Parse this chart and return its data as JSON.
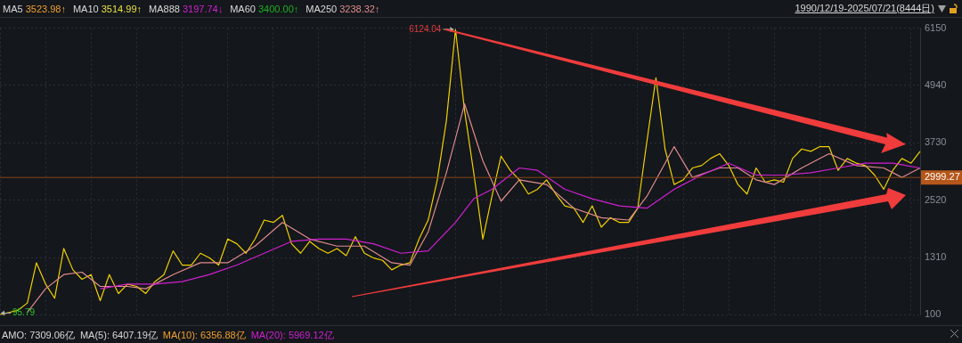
{
  "chart_data": {
    "type": "line",
    "subtitle": "1990/12/19-2025/07/21(8444日)",
    "annotations": [
      "MA5 3523.98↑",
      "MA10 3514.99↑",
      "MA888 3197.74↓",
      "MA60 3400.00↑",
      "MA250 3238.32↑",
      "AMO: 7309.06亿",
      "MA(5): 6407.19亿",
      "MA(10): 6356.88亿",
      "MA(20): 5969.12亿",
      "6124.04",
      "95.79"
    ],
    "categories": [
      null,
      null,
      null,
      null,
      null,
      null,
      null,
      null,
      null,
      null,
      null,
      null,
      null,
      null,
      null,
      null,
      null,
      null,
      null,
      null,
      null,
      null,
      null,
      null,
      null,
      null,
      null,
      null,
      null,
      null,
      null,
      null,
      null,
      null,
      null,
      null,
      null,
      null,
      null,
      null,
      null,
      null,
      null,
      null,
      null,
      null,
      null,
      null,
      null,
      null,
      null,
      null,
      null,
      null,
      null,
      null,
      null,
      null,
      null,
      null,
      null,
      null,
      null,
      null,
      null,
      null,
      null,
      null,
      null,
      null,
      null,
      null,
      null,
      null,
      null,
      null,
      null,
      null,
      null,
      null,
      null,
      null,
      null,
      null,
      null,
      null,
      null,
      null,
      null,
      null,
      null,
      null,
      null,
      null,
      null,
      null,
      null,
      null,
      null,
      null,
      null,
      null
    ],
    "series": [
      {
        "color": "#f0d000",
        "values": [
          100,
          150,
          200,
          350,
          1200,
          750,
          450,
          1500,
          1050,
          850,
          950,
          400,
          950,
          550,
          750,
          700,
          550,
          800,
          950,
          1450,
          1150,
          1150,
          1400,
          1300,
          1150,
          1700,
          1600,
          1400,
          1700,
          2100,
          2050,
          2200,
          1600,
          1400,
          1650,
          1500,
          1400,
          1500,
          1350,
          1750,
          1400,
          1300,
          1250,
          1050,
          1150,
          1200,
          1700,
          2100,
          2950,
          4200,
          6124.04,
          4400,
          3100,
          1700,
          2600,
          3450,
          3150,
          2950,
          2650,
          2750,
          2950,
          2650,
          2400,
          2350,
          2050,
          2400,
          1950,
          2150,
          2050,
          2050,
          2350,
          3750,
          5100,
          3600,
          2850,
          2950,
          3200,
          3250,
          3400,
          3500,
          3250,
          2850,
          2650,
          3200,
          2900,
          2950,
          2900,
          3400,
          3600,
          3550,
          3650,
          3650,
          3150,
          3400,
          3300,
          3250,
          3050,
          2750,
          3150,
          3400,
          3300,
          3550
        ]
      },
      {
        "color": "#e08c8c",
        "values": [
          null,
          null,
          null,
          150,
          null,
          650,
          null,
          950,
          null,
          1000,
          null,
          700,
          null,
          null,
          700,
          null,
          650,
          null,
          null,
          950,
          null,
          null,
          1200,
          null,
          null,
          1200,
          null,
          null,
          1550,
          null,
          null,
          2050,
          null,
          null,
          1700,
          null,
          null,
          1550,
          null,
          null,
          1550,
          null,
          null,
          1200,
          null,
          1150,
          null,
          1850,
          null,
          3100,
          null,
          4550,
          null,
          3350,
          null,
          2500,
          null,
          2950,
          null,
          null,
          2850,
          null,
          null,
          2350,
          null,
          null,
          2150,
          null,
          null,
          2100,
          null,
          2600,
          null,
          3300,
          3650,
          null,
          3000,
          null,
          null,
          3200,
          null,
          3200,
          null,
          2950,
          null,
          2850,
          null,
          null,
          3200,
          null,
          null,
          3500,
          null,
          null,
          3250,
          null,
          null,
          3200,
          null,
          3000,
          null,
          3200
        ]
      },
      {
        "color": "#d020d0",
        "values": [
          null,
          null,
          null,
          null,
          null,
          null,
          null,
          null,
          null,
          null,
          null,
          650,
          null,
          null,
          750,
          null,
          null,
          750,
          null,
          null,
          800,
          null,
          null,
          950,
          null,
          null,
          1150,
          null,
          null,
          1400,
          null,
          null,
          1650,
          null,
          null,
          1700,
          null,
          null,
          1700,
          null,
          null,
          1600,
          null,
          null,
          1400,
          null,
          null,
          1450,
          null,
          null,
          2050,
          null,
          2550,
          null,
          2750,
          null,
          null,
          3200,
          null,
          3150,
          null,
          null,
          2750,
          null,
          null,
          2550,
          null,
          null,
          2400,
          null,
          null,
          2350,
          null,
          null,
          2750,
          null,
          null,
          3050,
          null,
          null,
          3300,
          null,
          null,
          3050,
          null,
          null,
          3050,
          null,
          null,
          3100,
          null,
          null,
          3200,
          null,
          null,
          3300,
          null,
          null,
          3300,
          null,
          null,
          3200
        ]
      }
    ],
    "ylim": [
      100,
      6150
    ],
    "yticks": [
      100,
      1310,
      2520,
      3730,
      4940,
      6150
    ],
    "ref_lines": [
      {
        "axis": "y",
        "value": 2999.27,
        "label": "2999.27",
        "color": "#8b4513"
      }
    ],
    "grid": true,
    "legend": false,
    "tick_labels": "y",
    "marker": "none",
    "line_style": "solid"
  }
}
